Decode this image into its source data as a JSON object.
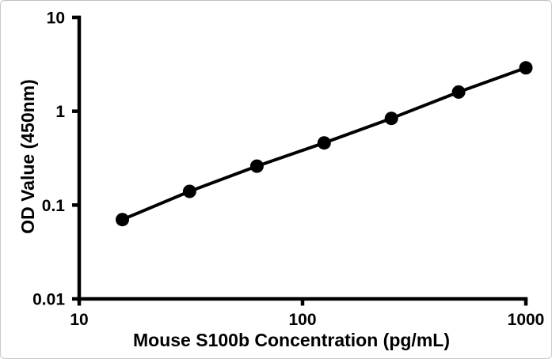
{
  "figure": {
    "background": "#ffffff",
    "border_color": "#c9c9c9"
  },
  "chart_data": {
    "type": "line",
    "title": "",
    "x": [
      15.6,
      31.2,
      62.5,
      125,
      250,
      500,
      1000
    ],
    "values": [
      0.07,
      0.14,
      0.26,
      0.46,
      0.84,
      1.6,
      2.9
    ],
    "xlabel": "Mouse S100b Concentration (pg/mL)",
    "ylabel": "OD Value (450nm)",
    "x_scale": "log",
    "y_scale": "log",
    "xlim": [
      10,
      1000
    ],
    "ylim": [
      0.01,
      10
    ],
    "x_tick_values": [
      10,
      100,
      1000
    ],
    "x_tick_labels": [
      "10",
      "100",
      "1000"
    ],
    "y_tick_values": [
      10,
      1,
      0.1,
      0.01
    ],
    "y_tick_labels": [
      "10",
      "1",
      "0.1",
      "0.01"
    ],
    "grid": false,
    "legend": "none",
    "marker": "filled-circle",
    "colors": {
      "line": "#000000",
      "marker": "#000000",
      "axis": "#000000",
      "text": "#000000"
    }
  }
}
